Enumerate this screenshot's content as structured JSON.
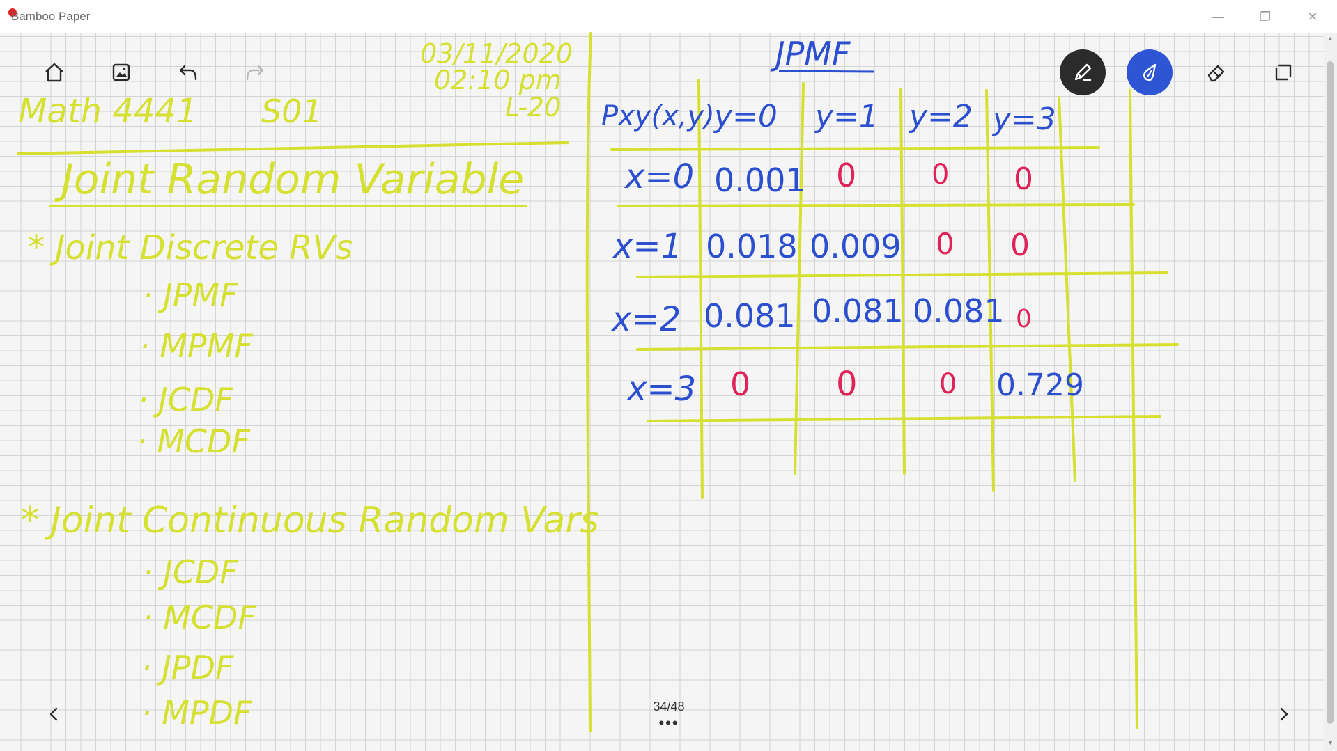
{
  "window": {
    "title": "Bamboo Paper",
    "minimize_glyph": "—",
    "maximize_glyph": "❐",
    "close_glyph": "✕"
  },
  "toolbar_left": {
    "home_icon": "home-icon",
    "image_icon": "image-icon",
    "undo_icon": "undo-icon",
    "redo_icon": "redo-icon"
  },
  "toolbar_right": {
    "pen_icon": "pen-icon",
    "brush_icon": "brush-icon",
    "eraser_icon": "eraser-icon",
    "select_icon": "lasso-select-icon",
    "active_tool": "brush"
  },
  "notes_left": {
    "date": "03/11/2020",
    "time": "02:10 pm",
    "lecture": "L-20",
    "course": "Math 4441",
    "section": "S01",
    "heading": "Joint Random Variable",
    "discrete_heading": "* Joint Discrete RVs",
    "discrete_items": [
      "· JPMF",
      "· MPMF",
      "· JCDF",
      "· MCDF"
    ],
    "continuous_heading": "* Joint Continuous Random Vars",
    "continuous_items": [
      "· JCDF",
      "· MCDF",
      "· JPDF",
      "· MPDF"
    ]
  },
  "notes_right": {
    "title": "JPMF",
    "corner": "Pxy(x,y)",
    "col_headers": [
      "y=0",
      "y=1",
      "y=2",
      "y=3"
    ],
    "row_headers": [
      "x=0",
      "x=1",
      "x=2",
      "x=3"
    ],
    "rows": [
      [
        "0.001",
        "0",
        "0",
        "0"
      ],
      [
        "0.018",
        "0.009",
        "0",
        "0"
      ],
      [
        "0.081",
        "0.081",
        "0.081",
        "0"
      ],
      [
        "0",
        "0",
        "0",
        "0.729"
      ]
    ]
  },
  "navigation": {
    "prev_glyph": "prev",
    "next_glyph": "next",
    "page_counter": "34/48",
    "menu_glyph": "•••"
  },
  "colors": {
    "yellow_ink": "#d6e030",
    "blue_ink": "#2c4fd0",
    "red_ink": "#e0245a",
    "active_tool_bg": "#2e55d4"
  }
}
